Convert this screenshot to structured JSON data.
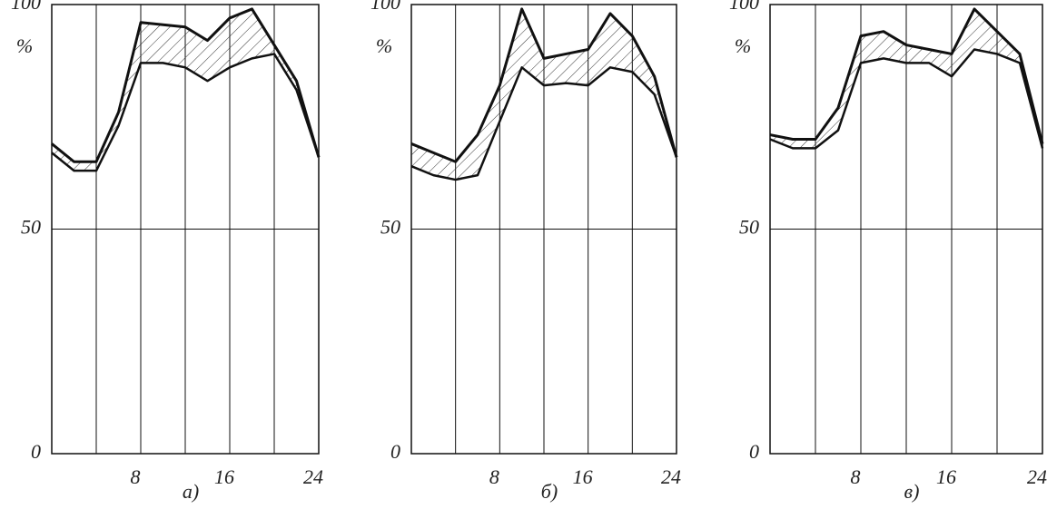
{
  "chart_data": [
    {
      "type": "line",
      "label": "а)",
      "unit": "%",
      "x": [
        0,
        2,
        4,
        6,
        8,
        10,
        12,
        14,
        16,
        18,
        20,
        22,
        24
      ],
      "series": [
        {
          "color": "#111",
          "values": [
            69,
            65,
            65,
            76,
            96,
            95.5,
            95,
            92,
            97,
            99,
            91,
            83,
            66
          ]
        },
        {
          "color": "#111",
          "values": [
            67,
            63,
            63,
            73,
            87,
            87,
            86,
            83,
            86,
            88,
            89,
            81,
            66
          ]
        }
      ],
      "xlim": [
        0,
        24
      ],
      "xticks": [
        8,
        16,
        24
      ],
      "xgrid": [
        4,
        8,
        12,
        16,
        20
      ],
      "ylim": [
        0,
        100
      ],
      "yticks": [
        0,
        50,
        100
      ],
      "grid": true
    },
    {
      "type": "line",
      "label": "б)",
      "unit": "%",
      "x": [
        0,
        2,
        4,
        6,
        8,
        10,
        12,
        14,
        16,
        18,
        20,
        22,
        24
      ],
      "series": [
        {
          "color": "#111",
          "values": [
            69,
            67,
            65,
            71,
            82,
            99,
            88,
            89,
            90,
            98,
            93,
            84,
            66
          ]
        },
        {
          "color": "#111",
          "values": [
            64,
            62,
            61,
            62,
            74,
            86,
            82,
            82.5,
            82,
            86,
            85,
            80,
            66
          ]
        }
      ],
      "xlim": [
        0,
        24
      ],
      "xticks": [
        8,
        16,
        24
      ],
      "xgrid": [
        4,
        8,
        12,
        16,
        20
      ],
      "ylim": [
        0,
        100
      ],
      "yticks": [
        0,
        50,
        100
      ],
      "grid": true
    },
    {
      "type": "line",
      "label": "в)",
      "unit": "%",
      "x": [
        0,
        2,
        4,
        6,
        8,
        10,
        12,
        14,
        16,
        18,
        20,
        22,
        24
      ],
      "series": [
        {
          "color": "#111",
          "values": [
            71,
            70,
            70,
            77,
            93,
            94,
            91,
            90,
            89,
            99,
            94,
            89,
            69
          ]
        },
        {
          "color": "#111",
          "values": [
            70,
            68,
            68,
            72,
            87,
            88,
            87,
            87,
            84,
            90,
            89,
            87,
            68
          ]
        }
      ],
      "xlim": [
        0,
        24
      ],
      "xticks": [
        8,
        16,
        24
      ],
      "xgrid": [
        4,
        8,
        12,
        16,
        20
      ],
      "ylim": [
        0,
        100
      ],
      "yticks": [
        0,
        50,
        100
      ],
      "grid": true
    }
  ]
}
